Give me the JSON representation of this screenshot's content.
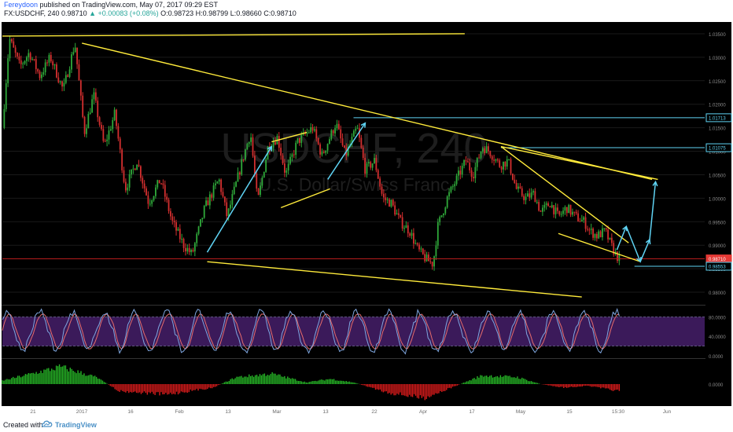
{
  "header": {
    "author": "Fereydoon",
    "published_text": "published on TradingView.com, May 07, 2017 09:29 EST",
    "symbol_line": "FX:USDCHF, 240",
    "last": "0.98710",
    "change": "+0.00083 (+0.08%)",
    "ohlc": "O:0.98723 H:0.98799 L:0.98660 C:0.98710"
  },
  "watermark": {
    "symbol": "USDCHF, 240",
    "name": "U.S. Dollar/Swiss Franc"
  },
  "footer": {
    "created_with": "Created with",
    "brand": "TradingView"
  },
  "colors": {
    "background": "#000000",
    "up_candle": "#2fa93a",
    "down_candle": "#d32f2f",
    "trendline": "#ffeb3b",
    "arrow": "#5fd3f3",
    "stoch_k": "#7fa7e0",
    "stoch_d": "#e56b6b",
    "stoch_band": "#3b1a5a",
    "macd_pos": "#26b526",
    "macd_neg": "#d81b1b",
    "grid": "#1a1a1a",
    "axis_text": "#8a8a8a"
  },
  "chart_data": {
    "type": "candlestick",
    "symbol": "FX:USDCHF",
    "interval": "240",
    "y_ticks": [
      "1.03500",
      "1.03000",
      "1.02500",
      "1.02000",
      "1.01500",
      "1.01000",
      "1.00500",
      "1.00000",
      "0.99500",
      "0.99000",
      "0.98500",
      "0.98000"
    ],
    "ylim": [
      0.9775,
      1.0375
    ],
    "x_ticks": [
      "21",
      "2017",
      "16",
      "Feb",
      "13",
      "Mar",
      "13",
      "22",
      "Apr",
      "17",
      "May",
      "15",
      "15:30",
      "Jun"
    ],
    "price_path": [
      [
        0.0,
        1.015
      ],
      [
        0.6,
        1.034
      ],
      [
        1.5,
        1.028
      ],
      [
        2.3,
        1.031
      ],
      [
        3.2,
        1.026
      ],
      [
        4.1,
        1.03
      ],
      [
        5.2,
        1.023
      ],
      [
        6.2,
        1.033
      ],
      [
        7.0,
        1.014
      ],
      [
        7.8,
        1.022
      ],
      [
        8.7,
        1.011
      ],
      [
        9.6,
        1.018
      ],
      [
        10.5,
        1.002
      ],
      [
        11.5,
        1.008
      ],
      [
        12.5,
        0.999
      ],
      [
        13.5,
        1.004
      ],
      [
        14.5,
        0.995
      ],
      [
        15.5,
        0.99
      ],
      [
        16.2,
        0.988
      ],
      [
        17.3,
        0.998
      ],
      [
        18.5,
        1.004
      ],
      [
        19.2,
        0.996
      ],
      [
        20.5,
        1.008
      ],
      [
        21.2,
        1.014
      ],
      [
        21.8,
        0.999
      ],
      [
        22.7,
        1.011
      ],
      [
        23.5,
        1.013
      ],
      [
        24.2,
        1.005
      ],
      [
        25.2,
        1.012
      ],
      [
        26.5,
        1.015
      ],
      [
        27.3,
        1.009
      ],
      [
        28.5,
        1.016
      ],
      [
        29.3,
        1.009
      ],
      [
        30.3,
        1.015
      ],
      [
        31.0,
        1.006
      ],
      [
        31.8,
        1.008
      ],
      [
        32.5,
        1.0
      ],
      [
        33.2,
        0.999
      ],
      [
        34.0,
        0.995
      ],
      [
        34.8,
        0.993
      ],
      [
        35.5,
        0.989
      ],
      [
        36.2,
        0.987
      ],
      [
        36.8,
        0.986
      ],
      [
        37.2,
        0.994
      ],
      [
        38.0,
        1.0
      ],
      [
        38.8,
        1.004
      ],
      [
        39.6,
        1.008
      ],
      [
        40.2,
        1.005
      ],
      [
        41.0,
        1.011
      ],
      [
        41.6,
        1.01
      ],
      [
        42.5,
        1.007
      ],
      [
        43.2,
        1.008
      ],
      [
        43.9,
        1.002
      ],
      [
        44.7,
        1.0
      ],
      [
        45.4,
        1.001
      ],
      [
        46.0,
        0.997
      ],
      [
        46.8,
        0.999
      ],
      [
        47.5,
        0.996
      ],
      [
        48.2,
        0.998
      ],
      [
        49.0,
        0.996
      ],
      [
        49.7,
        0.995
      ],
      [
        50.2,
        0.993
      ],
      [
        50.8,
        0.992
      ],
      [
        51.5,
        0.993
      ],
      [
        52.0,
        0.99
      ],
      [
        52.4,
        0.988
      ],
      [
        52.7,
        0.9871
      ]
    ],
    "price_labels": [
      {
        "label": "1.01713",
        "value": 1.01713,
        "style": "cyan"
      },
      {
        "label": "1.01075",
        "value": 1.01075,
        "style": "cyan"
      },
      {
        "label": "0.98710",
        "value": 0.9871,
        "style": "current"
      },
      {
        "label": "0.98553",
        "value": 0.98553,
        "style": "cyan"
      }
    ],
    "trendlines": [
      {
        "x1": 0.0,
        "y1": 1.0345,
        "x2": 39.5,
        "y2": 1.035
      },
      {
        "x1": 6.8,
        "y1": 1.033,
        "x2": 55.5,
        "y2": 1.004
      },
      {
        "x1": 17.5,
        "y1": 0.9865,
        "x2": 49.5,
        "y2": 0.979
      },
      {
        "x1": 23.0,
        "y1": 1.012,
        "x2": 26.0,
        "y2": 1.014
      },
      {
        "x1": 23.8,
        "y1": 0.998,
        "x2": 28.0,
        "y2": 1.002
      },
      {
        "x1": 42.6,
        "y1": 1.011,
        "x2": 56.0,
        "y2": 1.004
      },
      {
        "x1": 42.6,
        "y1": 1.011,
        "x2": 53.5,
        "y2": 0.9905
      },
      {
        "x1": 47.5,
        "y1": 0.9925,
        "x2": 54.5,
        "y2": 0.9865
      }
    ],
    "hlines": [
      {
        "value": 1.01713,
        "x_start": 30.0
      },
      {
        "value": 1.01075,
        "x_start": 42.6
      },
      {
        "value": 0.98553,
        "x_start": 54.0
      },
      {
        "value": 0.9871,
        "x_start": 0.0,
        "style": "red"
      }
    ],
    "arrows": [
      {
        "x1": 17.5,
        "y1": 0.9885,
        "x2": 23.0,
        "y2": 1.011
      },
      {
        "x1": 27.8,
        "y1": 1.004,
        "x2": 31.0,
        "y2": 1.016
      },
      {
        "x1": 52.5,
        "y1": 0.989,
        "x2": 53.3,
        "y2": 0.994
      },
      {
        "x1": 53.3,
        "y1": 0.994,
        "x2": 54.5,
        "y2": 0.9865
      },
      {
        "x1": 54.5,
        "y1": 0.9865,
        "x2": 55.3,
        "y2": 0.9912
      },
      {
        "x1": 55.3,
        "y1": 0.9912,
        "x2": 55.8,
        "y2": 1.0035
      }
    ],
    "stoch": {
      "levels": [
        "80.0000",
        "40.0000",
        "0.0000"
      ],
      "band": [
        20,
        80
      ],
      "ylim": [
        0,
        100
      ]
    },
    "macd": {
      "levels": [
        "0.0000"
      ]
    }
  }
}
